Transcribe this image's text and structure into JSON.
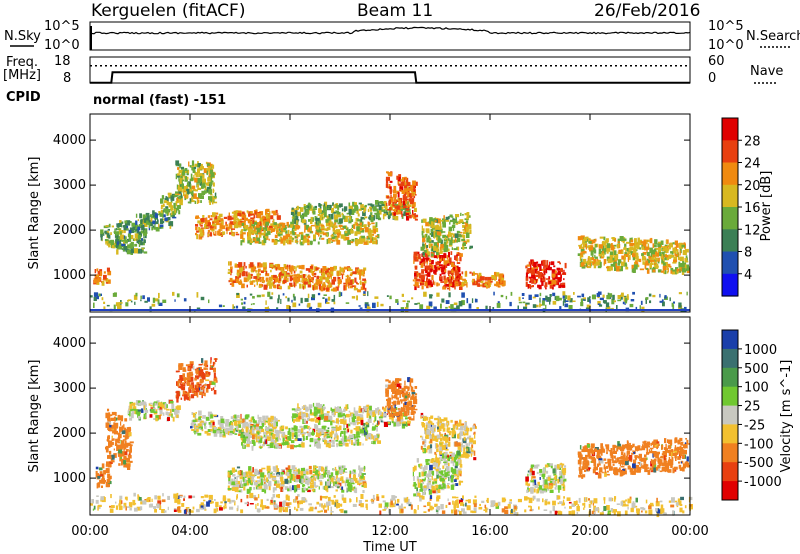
{
  "header": {
    "station": "Kerguelen (fitACF)",
    "beam": "Beam 11",
    "date": "26/Feb/2016"
  },
  "noise_panel": {
    "left_label": "N.Sky",
    "right_label": "N.Search",
    "left_ticks": [
      "10^5",
      "10^0"
    ],
    "right_ticks": [
      "10^5",
      "10^0"
    ]
  },
  "freq_panel": {
    "left_label_1": "Freq.",
    "left_label_2": "[MHz]",
    "left_ticks": [
      "18",
      "8"
    ],
    "right_label": "Nave",
    "right_ticks": [
      "60",
      "0"
    ],
    "freq_series": [
      {
        "t": 0,
        "v": 8.5
      },
      {
        "t": 0.85,
        "v": 8.5
      },
      {
        "t": 0.9,
        "v": 12.5
      },
      {
        "t": 13.0,
        "v": 12.5
      },
      {
        "t": 13.05,
        "v": 8.5
      },
      {
        "t": 24,
        "v": 8.5
      }
    ],
    "nave_series": [
      {
        "t": 0,
        "v": 40
      },
      {
        "t": 24,
        "v": 40
      }
    ]
  },
  "cpid": {
    "label": "CPID",
    "mode": "normal (fast) -151"
  },
  "chart_data": [
    {
      "type": "heatmap",
      "title": "",
      "xlabel": "Time UT",
      "ylabel": "Slant Range [km]",
      "x_ticks": [
        "00:00",
        "04:00",
        "08:00",
        "12:00",
        "16:00",
        "20:00",
        "00:00"
      ],
      "y_ticks": [
        "1000",
        "2000",
        "3000",
        "4000"
      ],
      "xlim": [
        0,
        24
      ],
      "ylim": [
        180,
        4580
      ],
      "colorbar": {
        "label": "Power [dB]",
        "ticks": [
          "4",
          "8",
          "12",
          "16",
          "20",
          "24",
          "28"
        ],
        "colors": [
          "#1010f0",
          "#2050b0",
          "#3b7f55",
          "#6aaa3a",
          "#d8b820",
          "#f08a10",
          "#e84010",
          "#e00000"
        ]
      },
      "echo_regions": [
        {
          "t": [
            0.1,
            0.7
          ],
          "r": [
            800,
            1150
          ],
          "p": 22
        },
        {
          "t": [
            0.4,
            1.2
          ],
          "r": [
            1600,
            2100
          ],
          "p": 14
        },
        {
          "t": [
            1.0,
            2.2
          ],
          "r": [
            1500,
            2200
          ],
          "p": 12
        },
        {
          "t": [
            1.8,
            3.3
          ],
          "r": [
            2000,
            2400
          ],
          "p": 12
        },
        {
          "t": [
            2.8,
            3.6
          ],
          "r": [
            2350,
            2800
          ],
          "p": 14
        },
        {
          "t": [
            3.4,
            5.0
          ],
          "r": [
            2600,
            3500
          ],
          "p": 16
        },
        {
          "t": [
            4.2,
            7.5
          ],
          "r": [
            1900,
            2400
          ],
          "p": 22
        },
        {
          "t": [
            5.5,
            11.0
          ],
          "r": [
            700,
            1200
          ],
          "p": 22
        },
        {
          "t": [
            6.0,
            11.5
          ],
          "r": [
            1700,
            2150
          ],
          "p": 18
        },
        {
          "t": [
            8.0,
            12.7
          ],
          "r": [
            2200,
            2600
          ],
          "p": 14
        },
        {
          "t": [
            11.8,
            13.0
          ],
          "r": [
            2300,
            3200
          ],
          "p": 24
        },
        {
          "t": [
            12.9,
            14.8
          ],
          "r": [
            700,
            1500
          ],
          "p": 26
        },
        {
          "t": [
            13.2,
            15.2
          ],
          "r": [
            1500,
            2300
          ],
          "p": 16
        },
        {
          "t": [
            14.3,
            16.5
          ],
          "r": [
            750,
            1050
          ],
          "p": 22
        },
        {
          "t": [
            17.4,
            19.0
          ],
          "r": [
            700,
            1300
          ],
          "p": 28
        },
        {
          "t": [
            17.5,
            21.5
          ],
          "r": [
            350,
            550
          ],
          "p": 24
        },
        {
          "t": [
            19.5,
            23.9
          ],
          "r": [
            1100,
            1800
          ],
          "p": 18
        },
        {
          "t": [
            0.0,
            24.0
          ],
          "r": [
            220,
            600
          ],
          "p": 10
        }
      ]
    },
    {
      "type": "heatmap",
      "title": "",
      "xlabel": "Time UT",
      "ylabel": "Slant Range [km]",
      "x_ticks": [
        "00:00",
        "04:00",
        "08:00",
        "12:00",
        "16:00",
        "20:00",
        "00:00"
      ],
      "y_ticks": [
        "1000",
        "2000",
        "3000",
        "4000"
      ],
      "xlim": [
        0,
        24
      ],
      "ylim": [
        180,
        4580
      ],
      "colorbar": {
        "label": "Velocity [m s^-1]",
        "ticks": [
          "1000",
          "500",
          "100",
          "25",
          "-25",
          "-100",
          "-500",
          "-1000"
        ],
        "colors": [
          "#1a3faa",
          "#3a7070",
          "#4a9a4a",
          "#70c830",
          "#c8c8c0",
          "#f2c030",
          "#f08020",
          "#e84010",
          "#e00000"
        ]
      },
      "echo_regions": [
        {
          "t": [
            0.2,
            0.8
          ],
          "r": [
            800,
            1300
          ],
          "v": -300
        },
        {
          "t": [
            0.6,
            1.6
          ],
          "r": [
            1300,
            2400
          ],
          "v": -300
        },
        {
          "t": [
            1.5,
            3.5
          ],
          "r": [
            2300,
            2700
          ],
          "v": 0
        },
        {
          "t": [
            3.4,
            5.0
          ],
          "r": [
            2800,
            3600
          ],
          "v": -500
        },
        {
          "t": [
            4.0,
            7.5
          ],
          "r": [
            1900,
            2400
          ],
          "v": 0
        },
        {
          "t": [
            5.5,
            11.0
          ],
          "r": [
            700,
            1250
          ],
          "v": 0
        },
        {
          "t": [
            6.0,
            11.5
          ],
          "r": [
            1700,
            2150
          ],
          "v": 0
        },
        {
          "t": [
            8.0,
            12.7
          ],
          "r": [
            2200,
            2600
          ],
          "v": 0
        },
        {
          "t": [
            11.8,
            13.0
          ],
          "r": [
            2300,
            3200
          ],
          "v": -400
        },
        {
          "t": [
            12.9,
            14.8
          ],
          "r": [
            700,
            1500
          ],
          "v": 0
        },
        {
          "t": [
            13.2,
            15.4
          ],
          "r": [
            1500,
            2300
          ],
          "v": -50
        },
        {
          "t": [
            17.4,
            19.0
          ],
          "r": [
            700,
            1300
          ],
          "v": 0
        },
        {
          "t": [
            19.5,
            23.9
          ],
          "r": [
            1100,
            1800
          ],
          "v": -200
        },
        {
          "t": [
            0.0,
            24.0
          ],
          "r": [
            220,
            600
          ],
          "v": -50
        }
      ]
    }
  ]
}
